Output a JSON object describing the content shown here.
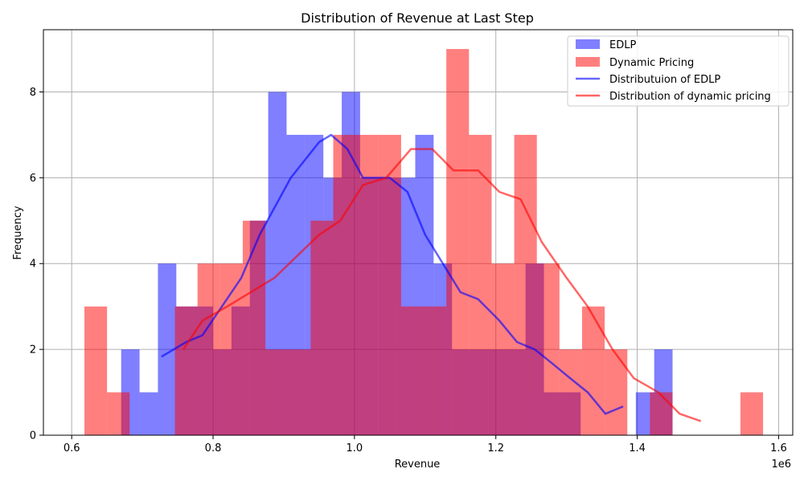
{
  "chart_data": {
    "type": "bar",
    "title": "Distribution of Revenue at Last Step",
    "xlabel": "Revenue",
    "ylabel": "Frequency",
    "x_offset_label": "1e6",
    "xlim": [
      0.56,
      1.62
    ],
    "ylim": [
      0,
      9.45
    ],
    "x_ticks": [
      0.6,
      0.8,
      1.0,
      1.2,
      1.4,
      1.6
    ],
    "x_tick_labels": [
      "0.6",
      "0.8",
      "1.0",
      "1.2",
      "1.4",
      "1.6"
    ],
    "y_ticks": [
      0,
      2,
      4,
      6,
      8
    ],
    "y_tick_labels": [
      "0",
      "2",
      "4",
      "6",
      "8"
    ],
    "grid": true,
    "legend_position": "top-right",
    "colors": {
      "edlp": "#0000ff",
      "dynamic": "#ff0000",
      "overlap": "#c03a80",
      "grid": "#b0b0b0"
    },
    "histograms": [
      {
        "name": "EDLP",
        "bin_width": 0.026,
        "bins": [
          {
            "x0": 0.67,
            "count": 2
          },
          {
            "x0": 0.696,
            "count": 1
          },
          {
            "x0": 0.722,
            "count": 4
          },
          {
            "x0": 0.748,
            "count": 3
          },
          {
            "x0": 0.774,
            "count": 3
          },
          {
            "x0": 0.8,
            "count": 2
          },
          {
            "x0": 0.826,
            "count": 3
          },
          {
            "x0": 0.852,
            "count": 5
          },
          {
            "x0": 0.878,
            "count": 8
          },
          {
            "x0": 0.904,
            "count": 7
          },
          {
            "x0": 0.93,
            "count": 7
          },
          {
            "x0": 0.956,
            "count": 6
          },
          {
            "x0": 0.982,
            "count": 8
          },
          {
            "x0": 1.008,
            "count": 6
          },
          {
            "x0": 1.034,
            "count": 6
          },
          {
            "x0": 1.06,
            "count": 6
          },
          {
            "x0": 1.086,
            "count": 7
          },
          {
            "x0": 1.112,
            "count": 4
          },
          {
            "x0": 1.138,
            "count": 2
          },
          {
            "x0": 1.164,
            "count": 2
          },
          {
            "x0": 1.19,
            "count": 2
          },
          {
            "x0": 1.216,
            "count": 2
          },
          {
            "x0": 1.242,
            "count": 4
          },
          {
            "x0": 1.268,
            "count": 1
          },
          {
            "x0": 1.294,
            "count": 1
          },
          {
            "x0": 1.32,
            "count": 0
          },
          {
            "x0": 1.346,
            "count": 0
          },
          {
            "x0": 1.372,
            "count": 0
          },
          {
            "x0": 1.398,
            "count": 1
          },
          {
            "x0": 1.424,
            "count": 2
          }
        ]
      },
      {
        "name": "Dynamic Pricing",
        "bin_width": 0.032,
        "bins": [
          {
            "x0": 0.618,
            "count": 3
          },
          {
            "x0": 0.65,
            "count": 1
          },
          {
            "x0": 0.682,
            "count": 0
          },
          {
            "x0": 0.714,
            "count": 0
          },
          {
            "x0": 0.746,
            "count": 3
          },
          {
            "x0": 0.778,
            "count": 4
          },
          {
            "x0": 0.81,
            "count": 4
          },
          {
            "x0": 0.842,
            "count": 5
          },
          {
            "x0": 0.874,
            "count": 2
          },
          {
            "x0": 0.906,
            "count": 2
          },
          {
            "x0": 0.938,
            "count": 5
          },
          {
            "x0": 0.97,
            "count": 7
          },
          {
            "x0": 1.002,
            "count": 7
          },
          {
            "x0": 1.034,
            "count": 7
          },
          {
            "x0": 1.066,
            "count": 3
          },
          {
            "x0": 1.098,
            "count": 3
          },
          {
            "x0": 1.13,
            "count": 9
          },
          {
            "x0": 1.162,
            "count": 7
          },
          {
            "x0": 1.194,
            "count": 4
          },
          {
            "x0": 1.226,
            "count": 7
          },
          {
            "x0": 1.258,
            "count": 4
          },
          {
            "x0": 1.29,
            "count": 2
          },
          {
            "x0": 1.322,
            "count": 3
          },
          {
            "x0": 1.354,
            "count": 2
          },
          {
            "x0": 1.386,
            "count": 0
          },
          {
            "x0": 1.418,
            "count": 1
          },
          {
            "x0": 1.45,
            "count": 0
          },
          {
            "x0": 1.482,
            "count": 0
          },
          {
            "x0": 1.514,
            "count": 0
          },
          {
            "x0": 1.546,
            "count": 1
          }
        ]
      }
    ],
    "lines": [
      {
        "name": "Distributuion of EDLP",
        "x": [
          0.727,
          0.762,
          0.785,
          0.84,
          0.866,
          0.91,
          0.95,
          0.967,
          0.99,
          1.012,
          1.05,
          1.075,
          1.1,
          1.125,
          1.15,
          1.175,
          1.205,
          1.23,
          1.255,
          1.28,
          1.305,
          1.33,
          1.355,
          1.38
        ],
        "y": [
          1.83,
          2.17,
          2.33,
          3.67,
          4.67,
          6.0,
          6.83,
          7.0,
          6.67,
          6.0,
          6.0,
          5.67,
          4.67,
          4.0,
          3.33,
          3.17,
          2.67,
          2.17,
          2.0,
          1.67,
          1.33,
          1.0,
          0.5,
          0.67
        ]
      },
      {
        "name": "Distribution of dynamic pricing",
        "x": [
          0.758,
          0.785,
          0.82,
          0.887,
          0.95,
          0.98,
          1.012,
          1.045,
          1.08,
          1.11,
          1.14,
          1.175,
          1.205,
          1.235,
          1.265,
          1.3,
          1.33,
          1.365,
          1.395,
          1.43,
          1.46,
          1.49
        ],
        "y": [
          2.0,
          2.67,
          3.0,
          3.67,
          4.67,
          5.0,
          5.83,
          6.0,
          6.67,
          6.67,
          6.17,
          6.17,
          5.67,
          5.5,
          4.5,
          3.67,
          3.0,
          2.0,
          1.33,
          1.0,
          0.5,
          0.33
        ]
      }
    ],
    "legend": [
      "EDLP",
      "Dynamic Pricing",
      "Distributuion of EDLP",
      "Distribution of dynamic pricing"
    ]
  }
}
